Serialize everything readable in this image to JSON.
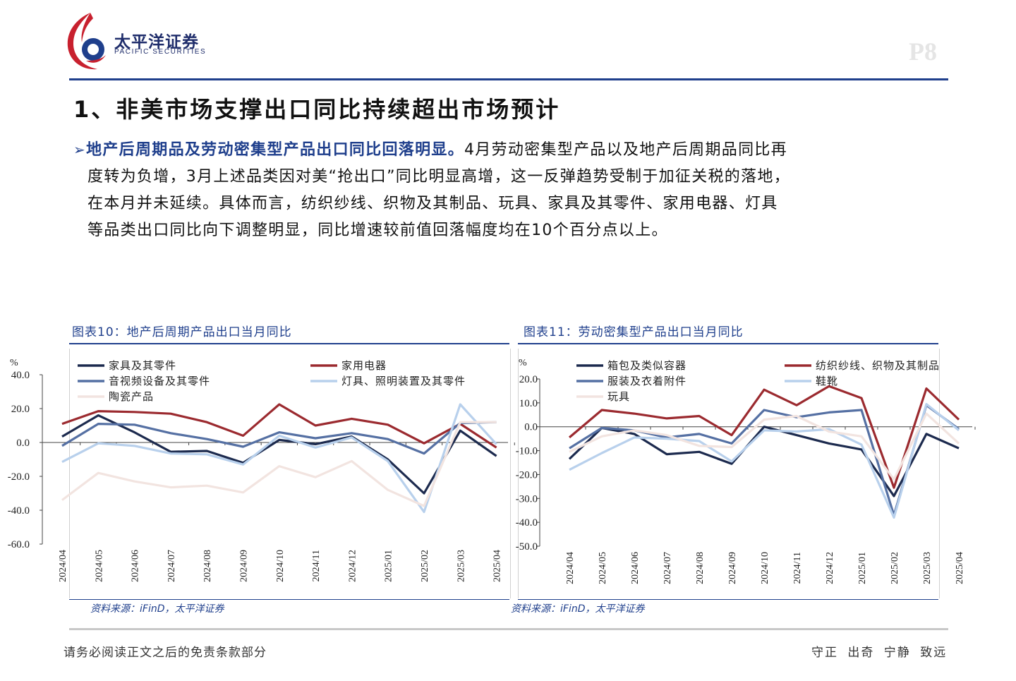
{
  "header": {
    "logo_cn": "太平洋证券",
    "logo_en": "PACIFIC SECURITIES",
    "page_number": "P8"
  },
  "section_title": "1、非美市场支撑出口同比持续超出市场预计",
  "paragraph": {
    "lead": "地产后周期品及劳动密集型产品出口同比回落明显。",
    "line1_rest": "4月劳动密集型产品以及地产后周期品同比再",
    "line2": "度转为负增，3月上述品类因对美“抢出口”同比明显高增，这一反弹趋势受制于加征关税的落地，",
    "line3": "在本月并未延续。具体而言，纺织纱线、织物及其制品、玩具、家具及其零件、家用电器、灯具",
    "line4": "等品类出口同比向下调整明显，同比增速较前值回落幅度均在10个百分点以上。"
  },
  "colors": {
    "brand_blue": "#1f3f8c",
    "navy": "#1c2a4e",
    "dark_red": "#9b2a2f",
    "steel_blue": "#5570a3",
    "light_blue": "#b8d0ec",
    "pale_pink": "#f2e4e0"
  },
  "figures": [
    {
      "title": "图表10：地产后周期产品出口当月同比",
      "source": "资料来源：iFinD，太平洋证券",
      "chart_data": {
        "type": "line",
        "ylabel": "%",
        "ylim": [
          -60,
          40
        ],
        "yticks": [
          "40.0",
          "20.0",
          "0.0",
          "-20.0",
          "-40.0",
          "-60.0"
        ],
        "categories": [
          "2024/04",
          "2024/05",
          "2024/06",
          "2024/07",
          "2024/08",
          "2024/09",
          "2024/10",
          "2024/11",
          "2024/12",
          "2025/01",
          "2025/02",
          "2025/03",
          "2025/04"
        ],
        "series": [
          {
            "name": "家具及其零件",
            "color": "#1c2a4e",
            "values": [
              3.5,
              16,
              6,
              -5.5,
              -5,
              -12,
              1.5,
              -1,
              3.5,
              -10,
              -30,
              7,
              -8
            ]
          },
          {
            "name": "家用电器",
            "color": "#9b2a2f",
            "values": [
              11,
              18.5,
              18,
              17,
              12,
              4,
              22.5,
              10,
              14,
              10.5,
              -0.5,
              11,
              -3
            ]
          },
          {
            "name": "音视频设备及其零件",
            "color": "#5570a3",
            "values": [
              -2,
              11,
              10.5,
              5.5,
              2,
              -2.5,
              6,
              2.5,
              5.5,
              2,
              -6.5,
              11.5,
              12
            ]
          },
          {
            "name": "灯具、照明装置及其零件",
            "color": "#b8d0ec",
            "values": [
              -11.5,
              -0.5,
              -2,
              -6.5,
              -7,
              -13,
              4,
              -3,
              3,
              -11,
              -41,
              22.5,
              -1
            ]
          },
          {
            "name": "陶瓷产品",
            "color": "#f2e4e0",
            "values": [
              -34,
              -18,
              -23,
              -26.5,
              -25.5,
              -29.5,
              -14,
              -20.5,
              -11,
              -28,
              -37.5,
              12,
              12
            ]
          }
        ]
      }
    },
    {
      "title": "图表11：劳动密集型产品出口当月同比",
      "source": "资料来源：iFinD，太平洋证券",
      "chart_data": {
        "type": "line",
        "ylabel": "%",
        "ylim": [
          -50,
          20
        ],
        "yticks": [
          "20.0",
          "10.0",
          "0.0",
          "-10.0",
          "-20.0",
          "-30.0",
          "-40.0",
          "-50.0"
        ],
        "categories": [
          "2024/04",
          "2024/05",
          "2024/06",
          "2024/07",
          "2024/08",
          "2024/09",
          "2024/10",
          "2024/11",
          "2024/12",
          "2025/01",
          "2025/02",
          "2025/03",
          "2025/04"
        ],
        "series": [
          {
            "name": "箱包及类似容器",
            "color": "#1c2a4e",
            "values": [
              -13.5,
              -0.5,
              -3,
              -11.5,
              -10.5,
              -15.5,
              0,
              -3.5,
              -7,
              -9.5,
              -29,
              -3,
              -9
            ]
          },
          {
            "name": "纺织纱线、织物及其制品",
            "color": "#9b2a2f",
            "values": [
              -4.5,
              7,
              5.5,
              3.5,
              4.5,
              -3.5,
              15.5,
              9,
              17,
              12,
              -25.5,
              16,
              3
            ]
          },
          {
            "name": "服装及衣着附件",
            "color": "#5570a3",
            "values": [
              -9,
              -0.5,
              -1.5,
              -4.5,
              -3,
              -7,
              7,
              4,
              6,
              7,
              -37,
              9,
              -1
            ]
          },
          {
            "name": "鞋靴",
            "color": "#b8d0ec",
            "values": [
              -18,
              -11,
              -4.5,
              -5,
              -6,
              -14.5,
              -1.5,
              -2,
              -1,
              -7.5,
              -38,
              9.5,
              -1.5
            ]
          },
          {
            "name": "玩具",
            "color": "#f2e4e0",
            "values": [
              -10.5,
              -4,
              -1.5,
              -3.5,
              -8,
              -8.5,
              3,
              4.5,
              -2,
              -4,
              -22,
              5.5,
              -7
            ]
          }
        ]
      }
    }
  ],
  "footer": {
    "disclaimer": "请务必阅读正文之后的免责条款部分",
    "motto": "守正 出奇 宁静 致远"
  }
}
